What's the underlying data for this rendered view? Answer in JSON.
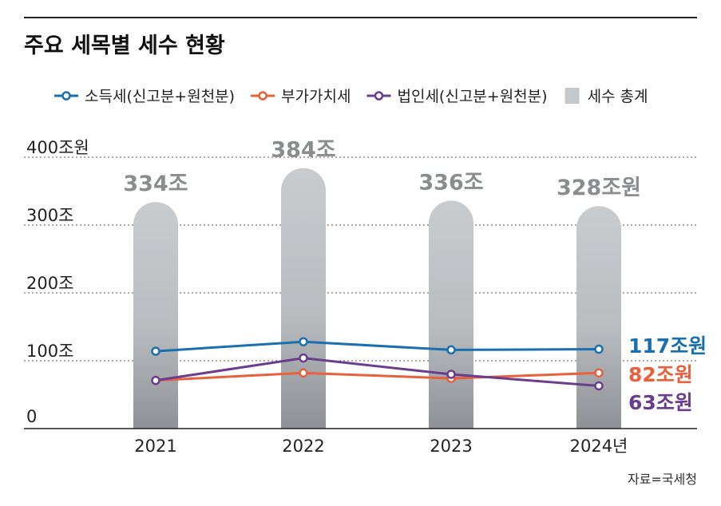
{
  "title": "주요 세목별 세수 현황",
  "source": "자료=국세청",
  "colors": {
    "income_tax": "#1a6fb0",
    "vat": "#e8603c",
    "corporate_tax": "#6c3d8c",
    "total": "#c5c8ca"
  },
  "chart_data": {
    "type": "bar",
    "categories": [
      "2021",
      "2022",
      "2023",
      "2024년"
    ],
    "ylim": [
      0,
      400
    ],
    "yticks": [
      {
        "value": 0,
        "label": "0"
      },
      {
        "value": 100,
        "label": "100조"
      },
      {
        "value": 200,
        "label": "200조"
      },
      {
        "value": 300,
        "label": "300조"
      },
      {
        "value": 400,
        "label": "400조원"
      }
    ],
    "grid": true,
    "legend_position": "top",
    "bars": {
      "name": "세수 총계",
      "values": [
        334,
        384,
        336,
        328
      ],
      "labels": [
        "334조",
        "384조",
        "336조",
        "328조원"
      ]
    },
    "series": [
      {
        "name": "소득세(신고분+원천분)",
        "values": [
          114,
          128,
          116,
          117
        ],
        "end_label": "117조원",
        "color_key": "income_tax"
      },
      {
        "name": "부가가치세",
        "values": [
          71,
          82,
          74,
          82
        ],
        "end_label": "82조원",
        "color_key": "vat"
      },
      {
        "name": "법인세(신고분+원천분)",
        "values": [
          71,
          104,
          80,
          63
        ],
        "end_label": "63조원",
        "color_key": "corporate_tax"
      }
    ]
  }
}
